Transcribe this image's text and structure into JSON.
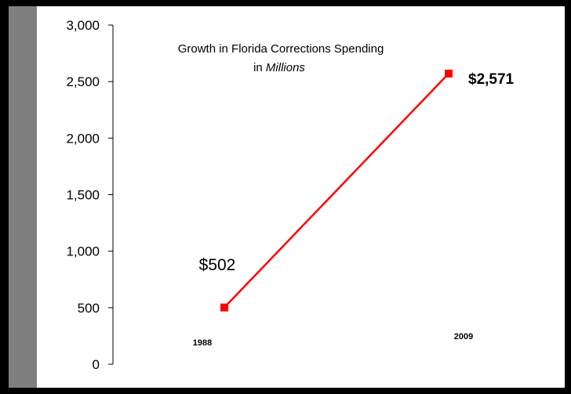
{
  "chart_data": {
    "type": "line",
    "title": "Growth in Florida Corrections Spending",
    "subtitle_prefix": "in ",
    "subtitle_emphasis": "Millions",
    "xlabel": "",
    "ylabel": "",
    "ylim": [
      0,
      3000
    ],
    "yticks": [
      "0",
      "500",
      "1,000",
      "1,500",
      "2,000",
      "2,500",
      "3,000"
    ],
    "ytick_values": [
      0,
      500,
      1000,
      1500,
      2000,
      2500,
      3000
    ],
    "grid": false,
    "categories": [
      "1988",
      "2009"
    ],
    "series": [
      {
        "values": [
          502,
          2571
        ],
        "color": "#ff0000"
      }
    ],
    "data_labels": [
      "$502",
      "$2,571"
    ]
  }
}
